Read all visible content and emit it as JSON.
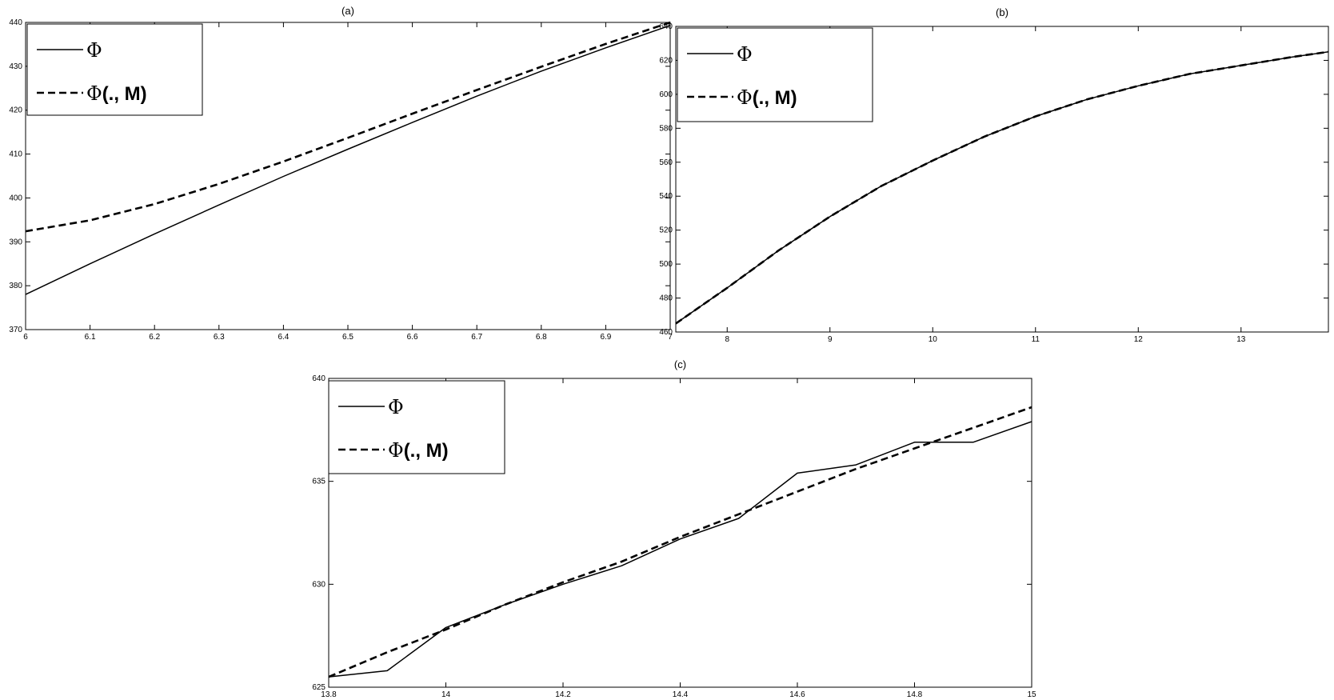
{
  "chart_data": [
    {
      "panel": "a",
      "type": "line",
      "title": "(a)",
      "xlabel": "",
      "ylabel": "",
      "xlim": [
        6,
        7
      ],
      "ylim": [
        370,
        440
      ],
      "xticks": [
        6,
        6.1,
        6.2,
        6.3,
        6.4,
        6.5,
        6.6,
        6.7,
        6.8,
        6.9,
        7
      ],
      "yticks": [
        370,
        380,
        390,
        400,
        410,
        420,
        430,
        440
      ],
      "grid": false,
      "legend_position": "top-left",
      "series": [
        {
          "name": "Φ",
          "style": "solid",
          "x": [
            6,
            6.1,
            6.2,
            6.3,
            6.4,
            6.5,
            6.6,
            6.7,
            6.8,
            6.9,
            7
          ],
          "y": [
            378,
            385,
            391.8,
            398.4,
            404.9,
            411.1,
            417.2,
            423.2,
            428.9,
            434.2,
            439.3
          ]
        },
        {
          "name": "Φ(., M)",
          "style": "dashed",
          "x": [
            6,
            6.1,
            6.2,
            6.3,
            6.4,
            6.5,
            6.6,
            6.7,
            6.8,
            6.9,
            7
          ],
          "y": [
            392.4,
            394.9,
            398.6,
            403.2,
            408.3,
            413.7,
            419.2,
            424.6,
            429.9,
            435.1,
            440
          ]
        }
      ]
    },
    {
      "panel": "b",
      "type": "line",
      "title": "(b)",
      "xlabel": "",
      "ylabel": "",
      "xlim": [
        7.5,
        13.85
      ],
      "ylim": [
        460,
        640
      ],
      "xticks": [
        8,
        9,
        10,
        11,
        12,
        13
      ],
      "yticks": [
        460,
        480,
        500,
        520,
        540,
        560,
        580,
        600,
        620,
        640
      ],
      "grid": false,
      "legend_position": "top-left",
      "series": [
        {
          "name": "Φ",
          "style": "solid",
          "x": [
            7.5,
            8,
            8.5,
            9,
            9.5,
            10,
            10.5,
            11,
            11.5,
            12,
            12.5,
            13,
            13.5,
            13.85
          ],
          "y": [
            465,
            486,
            508,
            528,
            546,
            561,
            575,
            587,
            597,
            605,
            612,
            617,
            622,
            625
          ]
        },
        {
          "name": "Φ(., M)",
          "style": "dashed",
          "x": [
            7.5,
            8,
            8.5,
            9,
            9.5,
            10,
            10.5,
            11,
            11.5,
            12,
            12.5,
            13,
            13.5,
            13.85
          ],
          "y": [
            465,
            486,
            508,
            528,
            546,
            561,
            575,
            587,
            597,
            605,
            612,
            617,
            622,
            625
          ]
        }
      ]
    },
    {
      "panel": "c",
      "type": "line",
      "title": "(c)",
      "xlabel": "",
      "ylabel": "",
      "xlim": [
        13.8,
        15
      ],
      "ylim": [
        625,
        640
      ],
      "xticks": [
        13.8,
        14,
        14.2,
        14.4,
        14.6,
        14.8,
        15
      ],
      "yticks": [
        625,
        630,
        635,
        640
      ],
      "grid": false,
      "legend_position": "top-left",
      "series": [
        {
          "name": "Φ",
          "style": "solid",
          "x": [
            13.8,
            13.9,
            14.0,
            14.1,
            14.2,
            14.3,
            14.4,
            14.5,
            14.6,
            14.7,
            14.8,
            14.9,
            15.0
          ],
          "y": [
            625.5,
            625.8,
            627.9,
            629.0,
            630.0,
            630.9,
            632.2,
            633.2,
            635.4,
            635.8,
            636.9,
            636.9,
            637.9
          ]
        },
        {
          "name": "Φ(., M)",
          "style": "dashed",
          "x": [
            13.8,
            13.9,
            14.0,
            14.1,
            14.2,
            14.3,
            14.4,
            14.5,
            14.6,
            14.7,
            14.8,
            14.9,
            15.0
          ],
          "y": [
            625.5,
            626.7,
            627.8,
            629.0,
            630.1,
            631.1,
            632.3,
            633.4,
            634.5,
            635.6,
            636.6,
            637.6,
            638.6
          ]
        }
      ]
    }
  ],
  "legend_parts": {
    "phi_symbol": "Φ",
    "m_suffix": "(., M)"
  }
}
